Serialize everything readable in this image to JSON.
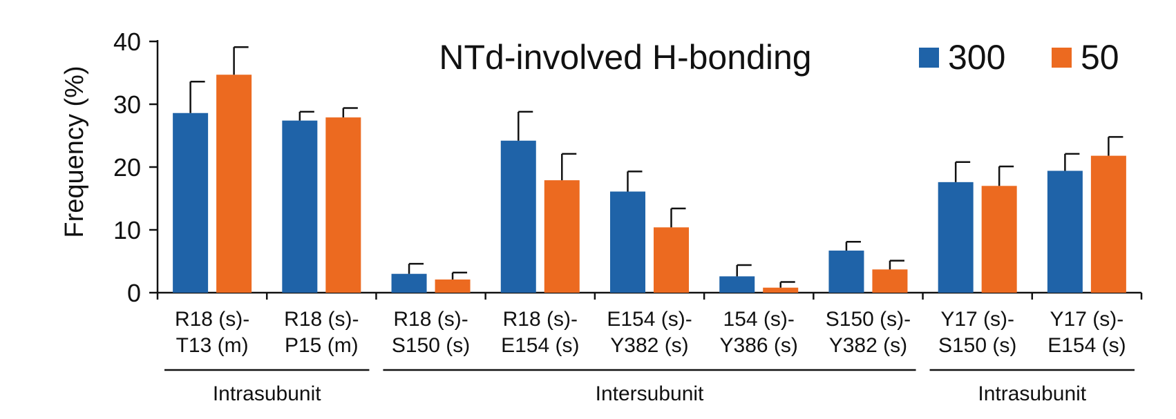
{
  "chart_data": {
    "type": "bar",
    "title": "NTd-involved H-bonding",
    "ylabel": "Frequency (%)",
    "xlabel": "",
    "ylim": [
      0,
      40
    ],
    "yticks": [
      0,
      10,
      20,
      30,
      40
    ],
    "legend_position": "top-right",
    "categories": [
      [
        "R18 (s)-",
        "T13 (m)"
      ],
      [
        "R18 (s)-",
        "P15 (m)"
      ],
      [
        "R18 (s)-",
        "S150 (s)"
      ],
      [
        "R18 (s)-",
        "E154 (s)"
      ],
      [
        "E154 (s)-",
        "Y382 (s)"
      ],
      [
        "154 (s)-",
        "Y386 (s)"
      ],
      [
        "S150 (s)-",
        "Y382 (s)"
      ],
      [
        "Y17 (s)-",
        "S150 (s)"
      ],
      [
        "Y17 (s)-",
        "E154 (s)"
      ]
    ],
    "series": [
      {
        "name": "300",
        "color": "#1f63a8",
        "values": [
          28.6,
          27.4,
          3.0,
          24.2,
          16.1,
          2.6,
          6.7,
          17.6,
          19.4
        ],
        "errors": [
          5.0,
          1.4,
          1.6,
          4.6,
          3.2,
          1.8,
          1.4,
          3.2,
          2.7
        ]
      },
      {
        "name": "50",
        "color": "#ec6a20",
        "values": [
          34.7,
          27.9,
          2.1,
          17.9,
          10.4,
          0.8,
          3.7,
          17.0,
          21.8
        ],
        "errors": [
          4.4,
          1.5,
          1.1,
          4.2,
          3.0,
          0.9,
          1.4,
          3.1,
          3.0
        ]
      }
    ],
    "groups": [
      {
        "label": "Intrasubunit",
        "from": 0,
        "to": 1
      },
      {
        "label": "Intersubunit",
        "from": 2,
        "to": 6
      },
      {
        "label": "Intrasubunit",
        "from": 7,
        "to": 8
      }
    ]
  }
}
